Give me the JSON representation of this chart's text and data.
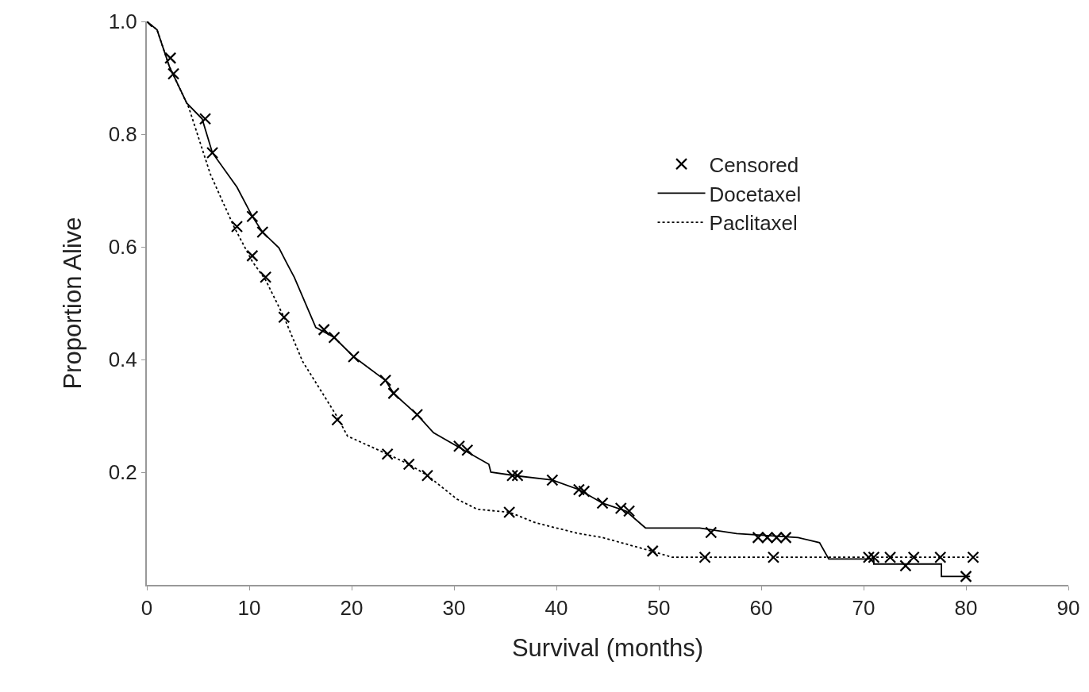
{
  "chart_data": {
    "type": "line",
    "xlabel": "Survival (months)",
    "ylabel": "Proportion Alive",
    "xlim": [
      0,
      90
    ],
    "xticks": [
      0,
      10,
      20,
      30,
      40,
      50,
      60,
      70,
      80,
      90
    ],
    "ylim": [
      0,
      1
    ],
    "yticks": [
      {
        "value": 0.2,
        "label": "0.2"
      },
      {
        "value": 0.4,
        "label": "0.4"
      },
      {
        "value": 0.6,
        "label": "0.6"
      },
      {
        "value": 0.8,
        "label": "0.8"
      },
      {
        "value": 1,
        "label": "1.0"
      }
    ],
    "grid": false,
    "legend": "top right",
    "series": [
      {
        "name": "Censored",
        "type": "scatter",
        "marker": "cross",
        "color": "#000000",
        "x": [
          0,
          2.3,
          2.6,
          5.7,
          6.4,
          10.3,
          11.3,
          17.3,
          18.3,
          20.2,
          23.3,
          24.1,
          26.4,
          30.5,
          31.3,
          35.7,
          36.2,
          39.6,
          42.2,
          42.7,
          44.5,
          46.3,
          47.1,
          55.1,
          59.7,
          60.6,
          61.5,
          62.4,
          70.5,
          71.0,
          74.1,
          80.0,
          8.8,
          10.3,
          11.6,
          13.4,
          18.6,
          23.5,
          25.6,
          27.4,
          35.4,
          49.4,
          54.5,
          61.2,
          72.6,
          74.9,
          77.5,
          80.7
        ],
        "values": [
          1.0,
          0.935,
          0.907,
          0.827,
          0.767,
          0.654,
          0.626,
          0.453,
          0.439,
          0.405,
          0.363,
          0.34,
          0.302,
          0.246,
          0.239,
          0.194,
          0.194,
          0.186,
          0.169,
          0.166,
          0.145,
          0.136,
          0.131,
          0.093,
          0.084,
          0.084,
          0.084,
          0.084,
          0.049,
          0.049,
          0.034,
          0.015,
          0.636,
          0.584,
          0.546,
          0.475,
          0.293,
          0.232,
          0.214,
          0.194,
          0.129,
          0.06,
          0.049,
          0.049,
          0.049,
          0.049,
          0.049,
          0.049
        ]
      },
      {
        "name": "Docetaxel",
        "line_style": "solid",
        "marker": "none",
        "color": "#000000",
        "x": [
          0,
          1.0,
          2.2,
          3.9,
          5.4,
          6.4,
          8.8,
          10.3,
          11.3,
          12.9,
          13.7,
          14.4,
          16.5,
          18.3,
          20.2,
          23.3,
          24.1,
          26.4,
          28.0,
          30.7,
          33.4,
          33.6,
          35.9,
          39.6,
          42.2,
          44.5,
          46.8,
          48.7,
          54.0,
          57.6,
          63.6,
          65.7,
          66.6,
          71.0,
          71.0,
          77.6,
          77.6,
          80.4
        ],
        "values": [
          1.0,
          0.985,
          0.92,
          0.855,
          0.827,
          0.767,
          0.706,
          0.654,
          0.626,
          0.598,
          0.57,
          0.546,
          0.457,
          0.439,
          0.405,
          0.363,
          0.34,
          0.302,
          0.27,
          0.242,
          0.214,
          0.2,
          0.194,
          0.186,
          0.169,
          0.145,
          0.131,
          0.101,
          0.101,
          0.091,
          0.084,
          0.075,
          0.046,
          0.046,
          0.037,
          0.037,
          0.015,
          0.015
        ]
      },
      {
        "name": "Paclitaxel",
        "line_style": "dotted",
        "marker": "none",
        "color": "#000000",
        "x": [
          0,
          1.0,
          2.2,
          4.1,
          6.2,
          8.5,
          10.3,
          11.6,
          13.4,
          15.2,
          18.6,
          19.6,
          23.5,
          25.6,
          27.4,
          30.3,
          32.3,
          35.4,
          38.0,
          42.2,
          44.5,
          49.3,
          51.3,
          81.2
        ],
        "values": [
          1.0,
          0.985,
          0.92,
          0.847,
          0.729,
          0.636,
          0.574,
          0.541,
          0.475,
          0.397,
          0.298,
          0.264,
          0.232,
          0.214,
          0.194,
          0.152,
          0.134,
          0.129,
          0.11,
          0.091,
          0.084,
          0.06,
          0.049,
          0.049
        ]
      }
    ]
  }
}
